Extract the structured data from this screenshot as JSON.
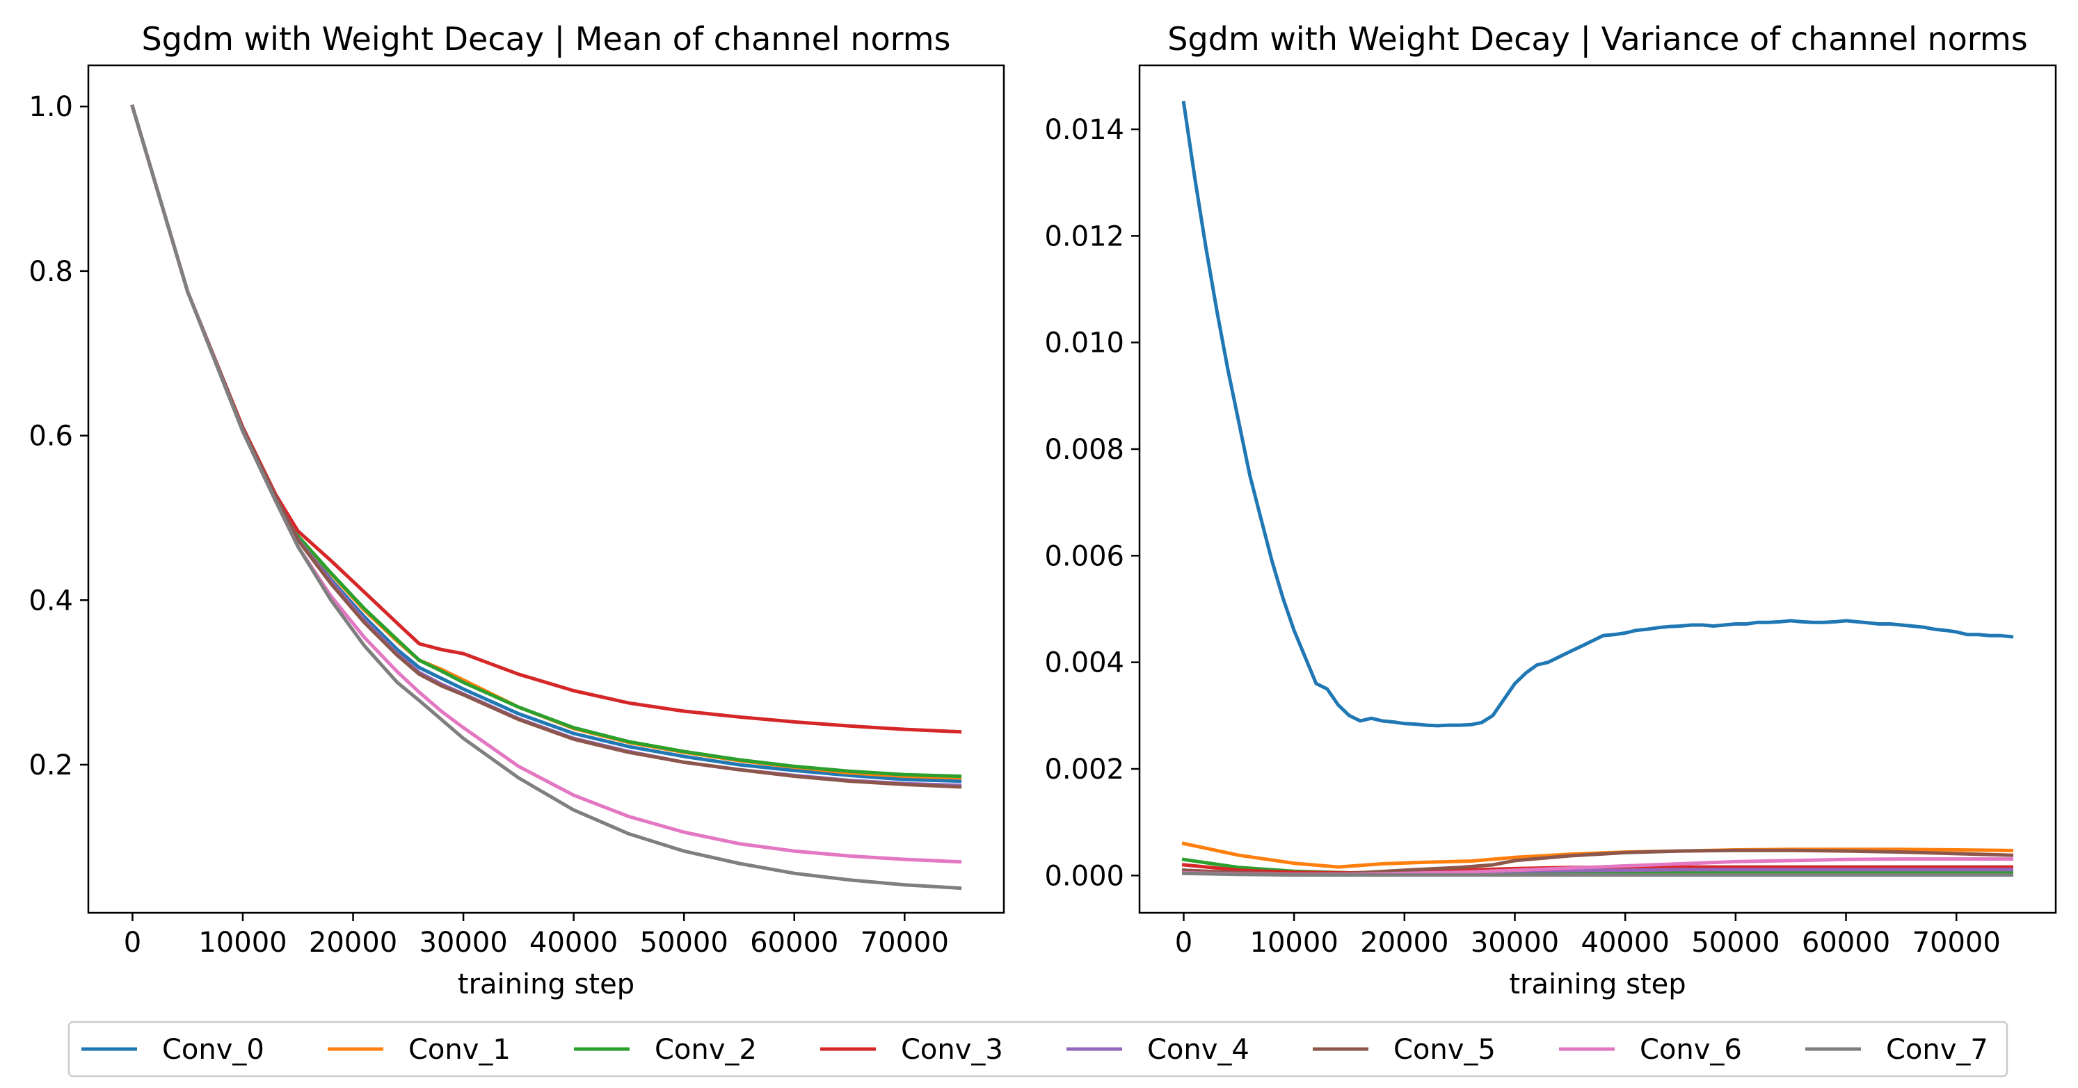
{
  "figure": {
    "legend": {
      "placement": "bottom-center",
      "entries": [
        {
          "label": "Conv_0",
          "color": "#1f77b4"
        },
        {
          "label": "Conv_1",
          "color": "#ff7f0e"
        },
        {
          "label": "Conv_2",
          "color": "#2ca02c"
        },
        {
          "label": "Conv_3",
          "color": "#d62728"
        },
        {
          "label": "Conv_4",
          "color": "#9467bd"
        },
        {
          "label": "Conv_5",
          "color": "#8c564b"
        },
        {
          "label": "Conv_6",
          "color": "#e377c2"
        },
        {
          "label": "Conv_7",
          "color": "#7f7f7f"
        }
      ]
    }
  },
  "chart_data": [
    {
      "type": "line",
      "title": "Sgdm with Weight Decay | Mean of channel norms",
      "xlabel": "training step",
      "ylabel": "",
      "xlim": [
        -4000,
        79000
      ],
      "ylim": [
        0.02,
        1.05
      ],
      "xticks": [
        0,
        10000,
        20000,
        30000,
        40000,
        50000,
        60000,
        70000
      ],
      "xtick_labels": [
        "0",
        "10000",
        "20000",
        "30000",
        "40000",
        "50000",
        "60000",
        "70000"
      ],
      "yticks": [
        0.2,
        0.4,
        0.6,
        0.8,
        1.0
      ],
      "ytick_labels": [
        "0.2",
        "0.4",
        "0.6",
        "0.8",
        "1.0"
      ],
      "grid": false,
      "x": [
        0,
        5000,
        10000,
        13000,
        15000,
        18000,
        21000,
        24000,
        26000,
        28000,
        30000,
        35000,
        40000,
        45000,
        50000,
        55000,
        60000,
        65000,
        70000,
        75000
      ],
      "series": [
        {
          "name": "Conv_0",
          "color": "#1f77b4",
          "values": [
            1.0,
            0.775,
            0.608,
            0.525,
            0.475,
            0.425,
            0.38,
            0.34,
            0.318,
            0.305,
            0.292,
            0.262,
            0.238,
            0.222,
            0.21,
            0.2,
            0.193,
            0.187,
            0.182,
            0.18
          ]
        },
        {
          "name": "Conv_1",
          "color": "#ff7f0e",
          "values": [
            1.0,
            0.775,
            0.608,
            0.525,
            0.478,
            0.432,
            0.388,
            0.35,
            0.327,
            0.316,
            0.303,
            0.27,
            0.244,
            0.227,
            0.215,
            0.205,
            0.197,
            0.19,
            0.186,
            0.184
          ]
        },
        {
          "name": "Conv_2",
          "color": "#2ca02c",
          "values": [
            1.0,
            0.775,
            0.608,
            0.525,
            0.478,
            0.433,
            0.39,
            0.352,
            0.327,
            0.314,
            0.3,
            0.27,
            0.245,
            0.228,
            0.216,
            0.206,
            0.198,
            0.192,
            0.188,
            0.186
          ]
        },
        {
          "name": "Conv_3",
          "color": "#d62728",
          "values": [
            1.0,
            0.775,
            0.61,
            0.528,
            0.484,
            0.448,
            0.41,
            0.372,
            0.347,
            0.34,
            0.335,
            0.31,
            0.29,
            0.275,
            0.265,
            0.258,
            0.252,
            0.247,
            0.243,
            0.24
          ]
        },
        {
          "name": "Conv_4",
          "color": "#9467bd",
          "values": [
            1.0,
            0.775,
            0.608,
            0.525,
            0.474,
            0.423,
            0.376,
            0.335,
            0.312,
            0.298,
            0.286,
            0.256,
            0.232,
            0.216,
            0.203,
            0.194,
            0.187,
            0.181,
            0.177,
            0.175
          ]
        },
        {
          "name": "Conv_5",
          "color": "#8c564b",
          "values": [
            1.0,
            0.775,
            0.608,
            0.525,
            0.473,
            0.42,
            0.373,
            0.333,
            0.31,
            0.296,
            0.285,
            0.255,
            0.231,
            0.215,
            0.203,
            0.194,
            0.186,
            0.18,
            0.176,
            0.173
          ]
        },
        {
          "name": "Conv_6",
          "color": "#e377c2",
          "values": [
            1.0,
            0.775,
            0.605,
            0.52,
            0.465,
            0.405,
            0.355,
            0.313,
            0.288,
            0.265,
            0.245,
            0.198,
            0.163,
            0.137,
            0.118,
            0.104,
            0.095,
            0.089,
            0.085,
            0.082
          ]
        },
        {
          "name": "Conv_7",
          "color": "#7f7f7f",
          "values": [
            1.0,
            0.775,
            0.605,
            0.52,
            0.465,
            0.4,
            0.345,
            0.3,
            0.278,
            0.255,
            0.232,
            0.184,
            0.145,
            0.116,
            0.095,
            0.08,
            0.068,
            0.06,
            0.054,
            0.05
          ]
        }
      ]
    },
    {
      "type": "line",
      "title": "Sgdm with Weight Decay | Variance of channel norms",
      "xlabel": "training step",
      "ylabel": "",
      "xlim": [
        -4000,
        79000
      ],
      "ylim": [
        -0.0007,
        0.0152
      ],
      "xticks": [
        0,
        10000,
        20000,
        30000,
        40000,
        50000,
        60000,
        70000
      ],
      "xtick_labels": [
        "0",
        "10000",
        "20000",
        "30000",
        "40000",
        "50000",
        "60000",
        "70000"
      ],
      "yticks": [
        0.0,
        0.002,
        0.004,
        0.006,
        0.008,
        0.01,
        0.012,
        0.014
      ],
      "ytick_labels": [
        "0.000",
        "0.002",
        "0.004",
        "0.006",
        "0.008",
        "0.010",
        "0.012",
        "0.014"
      ],
      "grid": false,
      "series": [
        {
          "name": "Conv_0",
          "color": "#1f77b4",
          "x": [
            0,
            1000,
            2000,
            3000,
            4000,
            5000,
            6000,
            7000,
            8000,
            9000,
            10000,
            11000,
            12000,
            13000,
            14000,
            15000,
            16000,
            17000,
            18000,
            19000,
            20000,
            21000,
            22000,
            23000,
            24000,
            25000,
            26000,
            27000,
            28000,
            29000,
            30000,
            31000,
            32000,
            33000,
            34000,
            35000,
            36000,
            37000,
            38000,
            39000,
            40000,
            41000,
            42000,
            43000,
            44000,
            45000,
            46000,
            47000,
            48000,
            49000,
            50000,
            51000,
            52000,
            53000,
            54000,
            55000,
            56000,
            57000,
            58000,
            59000,
            60000,
            61000,
            62000,
            63000,
            64000,
            65000,
            66000,
            67000,
            68000,
            69000,
            70000,
            71000,
            72000,
            73000,
            74000,
            75000
          ],
          "values": [
            0.0145,
            0.0131,
            0.0118,
            0.0106,
            0.0095,
            0.0085,
            0.0075,
            0.0067,
            0.0059,
            0.0052,
            0.0046,
            0.0041,
            0.0036,
            0.0035,
            0.0032,
            0.003,
            0.0029,
            0.00295,
            0.0029,
            0.00288,
            0.00285,
            0.00284,
            0.00282,
            0.00281,
            0.00282,
            0.00282,
            0.00283,
            0.00287,
            0.003,
            0.0033,
            0.0036,
            0.0038,
            0.00395,
            0.004,
            0.0041,
            0.0042,
            0.0043,
            0.0044,
            0.0045,
            0.00452,
            0.00455,
            0.0046,
            0.00462,
            0.00465,
            0.00467,
            0.00468,
            0.0047,
            0.0047,
            0.00468,
            0.0047,
            0.00472,
            0.00472,
            0.00475,
            0.00475,
            0.00476,
            0.00478,
            0.00476,
            0.00475,
            0.00475,
            0.00476,
            0.00478,
            0.00476,
            0.00474,
            0.00472,
            0.00472,
            0.0047,
            0.00468,
            0.00466,
            0.00462,
            0.0046,
            0.00457,
            0.00452,
            0.00452,
            0.0045,
            0.0045,
            0.00448
          ]
        },
        {
          "name": "Conv_1",
          "color": "#ff7f0e",
          "x": [
            0,
            5000,
            10000,
            14000,
            18000,
            22000,
            26000,
            30000,
            35000,
            40000,
            45000,
            50000,
            55000,
            60000,
            65000,
            70000,
            75000
          ],
          "values": [
            0.0006,
            0.00038,
            0.00023,
            0.00016,
            0.00022,
            0.00025,
            0.00027,
            0.00034,
            0.0004,
            0.00044,
            0.00046,
            0.00048,
            0.00049,
            0.00049,
            0.00049,
            0.00048,
            0.00047
          ]
        },
        {
          "name": "Conv_2",
          "color": "#2ca02c",
          "x": [
            0,
            5000,
            10000,
            15000,
            20000,
            25000,
            30000,
            35000,
            40000,
            45000,
            50000,
            55000,
            60000,
            65000,
            70000,
            75000
          ],
          "values": [
            0.0003,
            0.00015,
            8e-05,
            5e-05,
            4e-05,
            4e-05,
            4e-05,
            5e-05,
            5e-05,
            5e-05,
            5e-05,
            5e-05,
            5e-05,
            5e-05,
            5e-05,
            5e-05
          ]
        },
        {
          "name": "Conv_3",
          "color": "#d62728",
          "x": [
            0,
            5000,
            10000,
            15000,
            20000,
            25000,
            30000,
            35000,
            40000,
            45000,
            50000,
            55000,
            60000,
            65000,
            70000,
            75000
          ],
          "values": [
            0.0002,
            0.0001,
            6e-05,
            5e-05,
            7e-05,
            0.0001,
            0.00013,
            0.00015,
            0.00016,
            0.00016,
            0.00016,
            0.00016,
            0.00016,
            0.00016,
            0.00016,
            0.00016
          ]
        },
        {
          "name": "Conv_4",
          "color": "#9467bd",
          "x": [
            0,
            5000,
            10000,
            15000,
            20000,
            25000,
            30000,
            35000,
            40000,
            45000,
            50000,
            55000,
            60000,
            65000,
            70000,
            75000
          ],
          "values": [
            0.0001,
            5e-05,
            3e-05,
            3e-05,
            4e-05,
            6e-05,
            8e-05,
            9e-05,
            0.0001,
            0.00011,
            0.00011,
            0.00011,
            0.00011,
            0.00011,
            0.00011,
            0.00011
          ]
        },
        {
          "name": "Conv_5",
          "color": "#8c564b",
          "x": [
            0,
            5000,
            10000,
            15000,
            20000,
            25000,
            28000,
            30000,
            35000,
            40000,
            45000,
            50000,
            55000,
            60000,
            65000,
            70000,
            75000
          ],
          "values": [
            0.0001,
            5e-05,
            3e-05,
            4e-05,
            0.0001,
            0.00015,
            0.0002,
            0.00028,
            0.00037,
            0.00043,
            0.00046,
            0.00047,
            0.00047,
            0.00046,
            0.00044,
            0.00041,
            0.00038
          ]
        },
        {
          "name": "Conv_6",
          "color": "#e377c2",
          "x": [
            0,
            5000,
            10000,
            15000,
            20000,
            25000,
            30000,
            35000,
            40000,
            45000,
            50000,
            55000,
            60000,
            65000,
            70000,
            75000
          ],
          "values": [
            5e-05,
            3e-05,
            2e-05,
            2e-05,
            4e-05,
            6e-05,
            0.0001,
            0.00014,
            0.00018,
            0.00022,
            0.00026,
            0.00028,
            0.0003,
            0.00031,
            0.00031,
            0.00031
          ]
        },
        {
          "name": "Conv_7",
          "color": "#7f7f7f",
          "x": [
            0,
            5000,
            10000,
            15000,
            20000,
            25000,
            30000,
            35000,
            40000,
            45000,
            50000,
            55000,
            60000,
            65000,
            70000,
            75000
          ],
          "values": [
            4e-05,
            2e-05,
            1e-05,
            1e-05,
            1e-05,
            1e-05,
            1e-05,
            1e-05,
            1e-05,
            1e-05,
            1e-05,
            1e-05,
            1e-05,
            1e-05,
            1e-05,
            1e-05
          ]
        }
      ]
    }
  ]
}
